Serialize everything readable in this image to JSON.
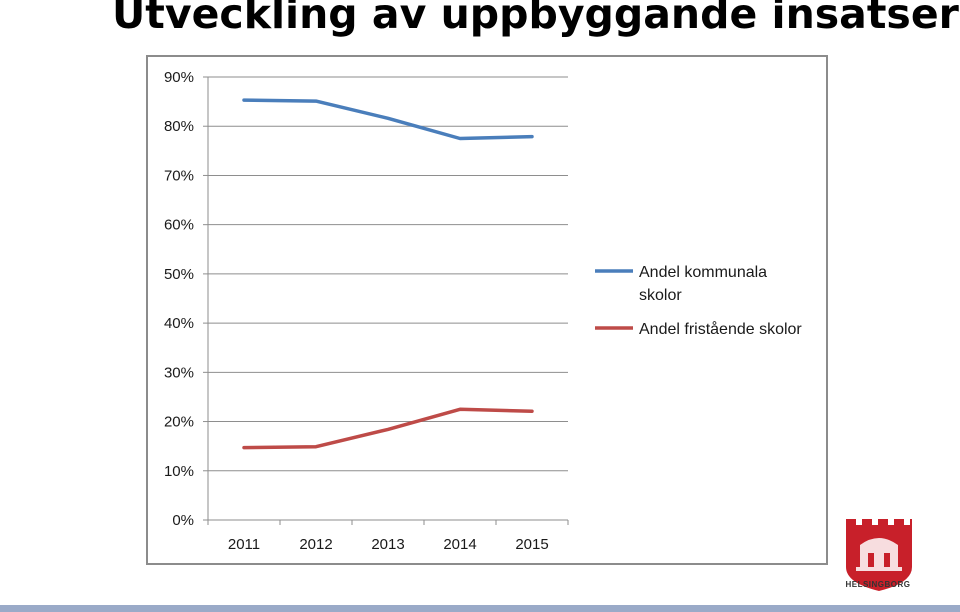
{
  "slide": {
    "title": "Utveckling av uppbyggande insatser"
  },
  "logo": {
    "text": "HELSINGBORG",
    "icon": "helsingborg-crest-icon",
    "color": "#c8202a"
  },
  "footer": {
    "color": "#9aaac8"
  },
  "chart_data": {
    "type": "line",
    "title": "",
    "xlabel": "",
    "ylabel": "",
    "categories": [
      "2011",
      "2012",
      "2013",
      "2014",
      "2015"
    ],
    "ylim": [
      0,
      90
    ],
    "yticks": [
      0,
      10,
      20,
      30,
      40,
      50,
      60,
      70,
      80,
      90
    ],
    "ytick_labels": [
      "0%",
      "10%",
      "20%",
      "30%",
      "40%",
      "50%",
      "60%",
      "70%",
      "80%",
      "90%"
    ],
    "grid": true,
    "legend_position": "right",
    "series": [
      {
        "name_lines": [
          "Andel kommunala",
          "skolor"
        ],
        "values": [
          85.3,
          85.1,
          81.6,
          77.5,
          77.9
        ],
        "color": "#4a7ebb"
      },
      {
        "name_lines": [
          "Andel fristående skolor"
        ],
        "values": [
          14.7,
          14.9,
          18.4,
          22.5,
          22.1
        ],
        "color": "#be4b48"
      }
    ]
  }
}
